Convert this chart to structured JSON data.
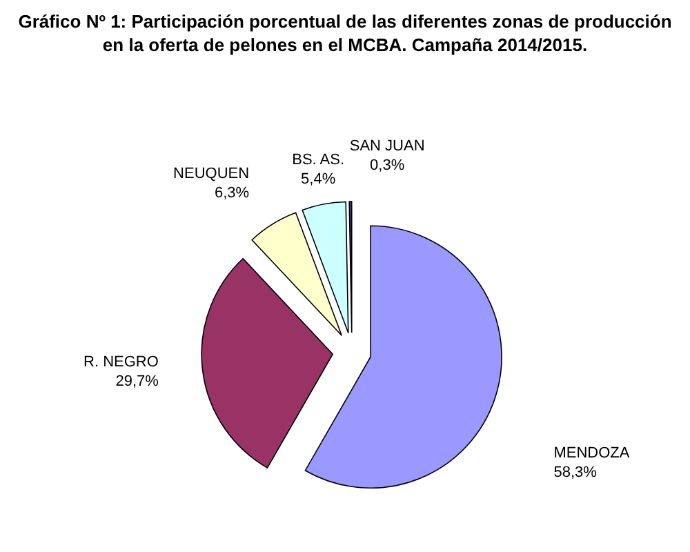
{
  "chart_data": {
    "type": "pie",
    "title": "Gráfico Nº 1: Participación porcentual de las diferentes zonas de producción en la oferta de pelones en el MCBA. Campaña 2014/2015.",
    "categories": [
      "MENDOZA",
      "R. NEGRO",
      "NEUQUEN",
      "BS. AS.",
      "SAN JUAN"
    ],
    "values": [
      58.3,
      29.7,
      6.3,
      5.4,
      0.3
    ],
    "colors": [
      "#9999ff",
      "#993366",
      "#ffffcc",
      "#ccffff",
      "#333399"
    ],
    "value_labels": [
      "58,3%",
      "29,7%",
      "6,3%",
      "5,4%",
      "0,3%"
    ]
  }
}
